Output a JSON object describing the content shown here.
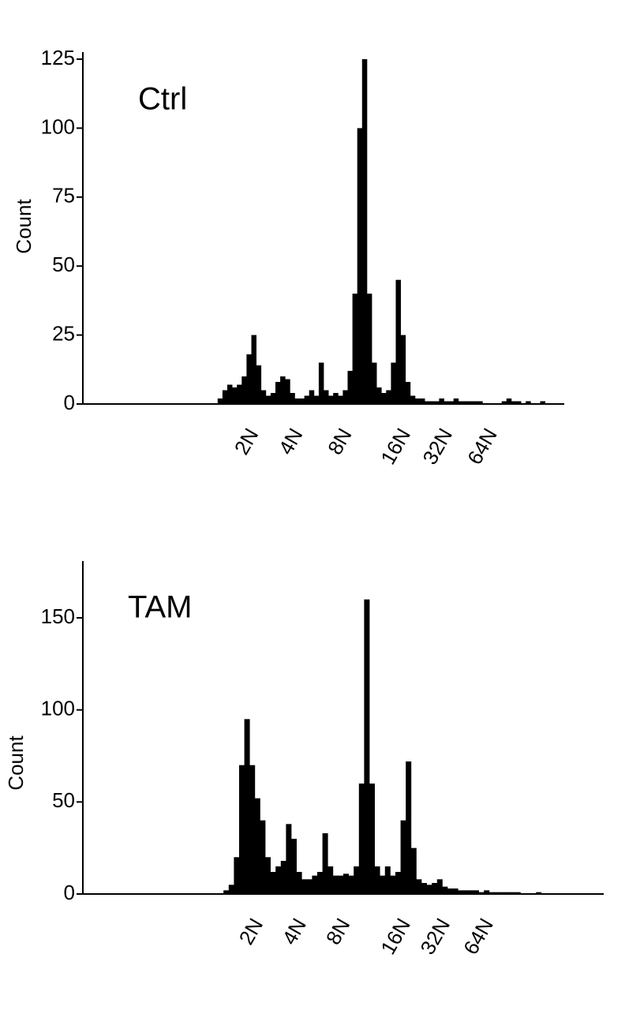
{
  "chart_data": [
    {
      "type": "histogram",
      "title": "Ctrl",
      "ylabel": "Count",
      "color": "#000000",
      "xlim": [
        0,
        100
      ],
      "ylim": [
        0,
        125
      ],
      "yticks": [
        0,
        25,
        50,
        75,
        100,
        125
      ],
      "xticks": [
        {
          "value": 35.6,
          "label": "2N"
        },
        {
          "value": 44.8,
          "label": "4N"
        },
        {
          "value": 55,
          "label": "8N"
        },
        {
          "value": 67.2,
          "label": "16N"
        },
        {
          "value": 75.9,
          "label": "32N"
        },
        {
          "value": 85.2,
          "label": "64N"
        }
      ],
      "bins": [
        0,
        1,
        2,
        3,
        4,
        5,
        6,
        7,
        8,
        9,
        10,
        11,
        12,
        13,
        14,
        15,
        16,
        17,
        18,
        19,
        20,
        21,
        22,
        23,
        24,
        25,
        26,
        27,
        28,
        29,
        30,
        31,
        32,
        33,
        34,
        35,
        36,
        37,
        38,
        39,
        40,
        41,
        42,
        43,
        44,
        45,
        46,
        47,
        48,
        49,
        50,
        51,
        52,
        53,
        54,
        55,
        56,
        57,
        58,
        59,
        60,
        61,
        62,
        63,
        64,
        65,
        66,
        67,
        68,
        69,
        70,
        71,
        72,
        73,
        74,
        75,
        76,
        77,
        78,
        79,
        80,
        81,
        82,
        83,
        84,
        85,
        86,
        87,
        88,
        89,
        90,
        91,
        92,
        93,
        94,
        95,
        96,
        97,
        98,
        99,
        100
      ],
      "counts": [
        0,
        0,
        0,
        0,
        0,
        0,
        0,
        0,
        0,
        0,
        0,
        0,
        0,
        0,
        0,
        0,
        0,
        0,
        0,
        0,
        0,
        0,
        0,
        0,
        0,
        0,
        0,
        0,
        2,
        5,
        7,
        6,
        7,
        10,
        18,
        25,
        14,
        5,
        3,
        4,
        8,
        10,
        9,
        4,
        2,
        2,
        3,
        5,
        3,
        15,
        5,
        3,
        4,
        3,
        5,
        12,
        40,
        100,
        125,
        40,
        15,
        6,
        4,
        5,
        15,
        45,
        25,
        8,
        3,
        2,
        2,
        1,
        1,
        1,
        2,
        1,
        1,
        2,
        1,
        1,
        1,
        1,
        1,
        0,
        0,
        0,
        0,
        1,
        2,
        1,
        1,
        0,
        1,
        0,
        0,
        1,
        0,
        0,
        0,
        0
      ]
    },
    {
      "type": "histogram",
      "title": "TAM",
      "ylabel": "Count",
      "color": "#000000",
      "xlim": [
        0,
        100
      ],
      "ylim": [
        0,
        180
      ],
      "yticks": [
        0,
        50,
        100,
        150
      ],
      "xticks": [
        {
          "value": 33.8,
          "label": "2N"
        },
        {
          "value": 42.1,
          "label": "4N"
        },
        {
          "value": 50.5,
          "label": "8N"
        },
        {
          "value": 62.1,
          "label": "16N"
        },
        {
          "value": 69.7,
          "label": "32N"
        },
        {
          "value": 78,
          "label": "64N"
        }
      ],
      "bins": [
        0,
        1,
        2,
        3,
        4,
        5,
        6,
        7,
        8,
        9,
        10,
        11,
        12,
        13,
        14,
        15,
        16,
        17,
        18,
        19,
        20,
        21,
        22,
        23,
        24,
        25,
        26,
        27,
        28,
        29,
        30,
        31,
        32,
        33,
        34,
        35,
        36,
        37,
        38,
        39,
        40,
        41,
        42,
        43,
        44,
        45,
        46,
        47,
        48,
        49,
        50,
        51,
        52,
        53,
        54,
        55,
        56,
        57,
        58,
        59,
        60,
        61,
        62,
        63,
        64,
        65,
        66,
        67,
        68,
        69,
        70,
        71,
        72,
        73,
        74,
        75,
        76,
        77,
        78,
        79,
        80,
        81,
        82,
        83,
        84,
        85,
        86,
        87,
        88,
        89,
        90,
        91,
        92,
        93,
        94,
        95,
        96,
        97,
        98,
        99,
        100
      ],
      "counts": [
        0,
        0,
        0,
        0,
        0,
        0,
        0,
        0,
        0,
        0,
        0,
        0,
        0,
        0,
        0,
        0,
        0,
        0,
        0,
        0,
        0,
        0,
        0,
        0,
        0,
        0,
        0,
        2,
        5,
        20,
        70,
        95,
        70,
        52,
        40,
        20,
        12,
        15,
        18,
        38,
        30,
        12,
        8,
        8,
        10,
        12,
        33,
        15,
        10,
        10,
        11,
        10,
        15,
        60,
        160,
        60,
        15,
        10,
        15,
        10,
        12,
        40,
        72,
        25,
        8,
        6,
        5,
        6,
        8,
        4,
        3,
        3,
        2,
        2,
        2,
        2,
        1,
        2,
        1,
        1,
        1,
        1,
        1,
        1,
        0,
        0,
        0,
        1,
        0,
        0,
        0,
        0,
        0,
        0,
        0,
        0,
        0,
        0,
        0,
        0
      ]
    }
  ]
}
